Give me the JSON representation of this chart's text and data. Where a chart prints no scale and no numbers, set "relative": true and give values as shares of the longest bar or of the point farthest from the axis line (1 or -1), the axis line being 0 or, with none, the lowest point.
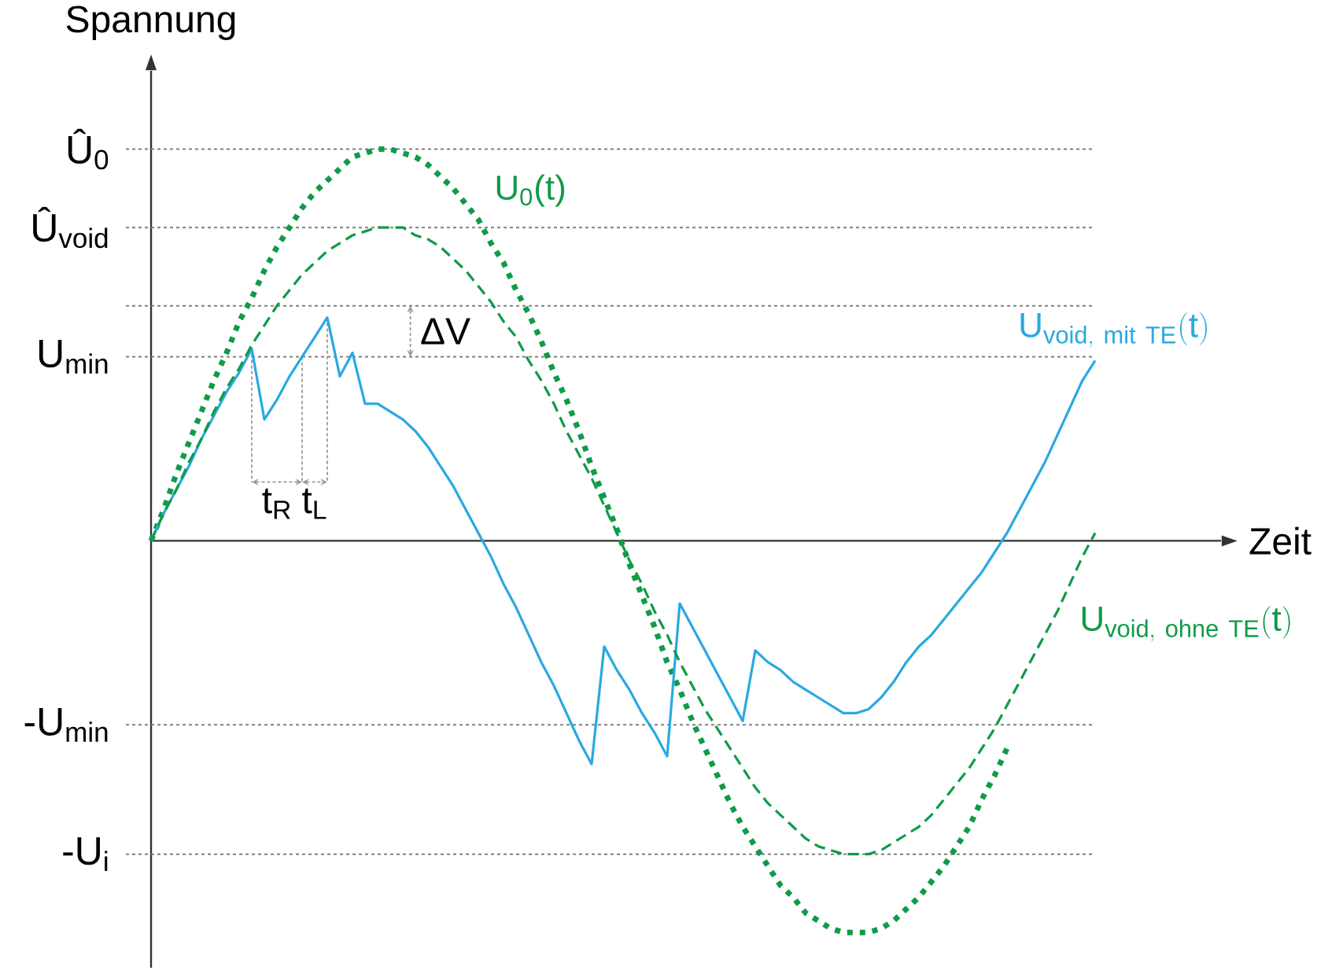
{
  "chart_data": {
    "type": "line",
    "relative": true,
    "xlabel": "Zeit",
    "ylabel": "Spannung",
    "categories": [
      null,
      null,
      null,
      null,
      null,
      null,
      null,
      null,
      null,
      null,
      null,
      null,
      null,
      null,
      null,
      null,
      null,
      null,
      null,
      null,
      null,
      null,
      null,
      null,
      null,
      null,
      null,
      null,
      null,
      null,
      null,
      null,
      null,
      null,
      null,
      null,
      null,
      null,
      null,
      null,
      null,
      null,
      null,
      null,
      null,
      null,
      null,
      null,
      null,
      null,
      null,
      null,
      null,
      null,
      null,
      null,
      null,
      null,
      null,
      null,
      null,
      null,
      null,
      null,
      null,
      null,
      null,
      null,
      null,
      null,
      null,
      null,
      null,
      null,
      null,
      null
    ],
    "series": [
      {
        "name": "U$_{0}$(t)",
        "color": "#0f9b48",
        "line_style": "dotted",
        "values": [
          0,
          0.08,
          0.17,
          0.25,
          0.33,
          0.41,
          0.48,
          0.56,
          0.62,
          0.69,
          0.75,
          0.8,
          0.85,
          0.89,
          0.92,
          0.95,
          0.98,
          0.99,
          1,
          1,
          0.99,
          0.98,
          0.96,
          0.93,
          0.9,
          0.86,
          0.82,
          0.76,
          0.71,
          0.64,
          0.58,
          0.51,
          0.43,
          0.36,
          0.28,
          0.19,
          0.11,
          0.03,
          -0.06,
          -0.14,
          -0.22,
          -0.31,
          -0.38,
          -0.46,
          -0.53,
          -0.6,
          -0.67,
          -0.73,
          -0.78,
          -0.83,
          -0.88,
          -0.91,
          -0.95,
          -0.97,
          -0.99,
          -1,
          -1,
          -1,
          -0.99,
          -0.97,
          -0.94,
          -0.91,
          -0.87,
          -0.83,
          -0.78,
          -0.73,
          -0.66,
          -0.6,
          -0.53,
          null,
          null,
          null,
          null,
          null,
          null,
          null
        ]
      },
      {
        "name": "\\mathrm{U}_{\\mathrm{void,\\ mit\\ TE}}(\\mathrm{t})",
        "color": "#29a9e1",
        "line_style": "solid",
        "values": [
          0,
          0.07,
          0.13,
          0.19,
          0.26,
          0.32,
          0.38,
          0.43,
          0.49,
          0.31,
          0.36,
          0.42,
          0.47,
          0.52,
          0.57,
          0.42,
          0.48,
          0.35,
          0.35,
          0.33,
          0.31,
          0.28,
          0.24,
          0.19,
          0.14,
          0.08,
          0.02,
          -0.04,
          -0.11,
          -0.17,
          -0.24,
          -0.31,
          -0.37,
          -0.44,
          -0.51,
          -0.57,
          -0.27,
          -0.33,
          -0.38,
          -0.44,
          -0.49,
          -0.55,
          -0.16,
          -0.22,
          -0.28,
          -0.34,
          -0.4,
          -0.46,
          -0.28,
          -0.31,
          -0.33,
          -0.36,
          -0.38,
          -0.4,
          -0.42,
          -0.44,
          -0.44,
          -0.43,
          -0.4,
          -0.36,
          -0.31,
          -0.27,
          -0.24,
          -0.2,
          -0.16,
          -0.12,
          -0.08,
          -0.03,
          0.02,
          0.08,
          0.14,
          0.2,
          0.27,
          0.34,
          0.41,
          0.46
        ]
      },
      {
        "name": "\\mathrm{U}_{\\mathrm{void,\\ ohne\\ TE}}(\\mathrm{t})",
        "color": "#0f9b48",
        "line_style": "dashed",
        "values": [
          0,
          0.07,
          0.13,
          0.2,
          0.26,
          0.33,
          0.39,
          0.44,
          0.5,
          0.55,
          0.6,
          0.64,
          0.68,
          0.71,
          0.74,
          0.76,
          0.78,
          0.79,
          0.8,
          0.8,
          0.8,
          0.78,
          0.77,
          0.75,
          0.72,
          0.69,
          0.65,
          0.61,
          0.56,
          0.52,
          0.46,
          0.41,
          0.35,
          0.28,
          0.22,
          0.16,
          0.09,
          0.02,
          -0.05,
          -0.11,
          -0.18,
          -0.24,
          -0.31,
          -0.37,
          -0.43,
          -0.48,
          -0.53,
          -0.58,
          -0.63,
          -0.67,
          -0.7,
          -0.73,
          -0.76,
          -0.78,
          -0.79,
          -0.8,
          -0.8,
          -0.8,
          -0.79,
          -0.77,
          -0.75,
          -0.73,
          -0.7,
          -0.66,
          -0.62,
          -0.58,
          -0.53,
          -0.48,
          -0.42,
          -0.36,
          -0.3,
          -0.24,
          -0.18,
          -0.11,
          -0.04,
          0.02
        ]
      }
    ],
    "ref_lines": [
      {
        "axis": "y",
        "value": 1,
        "label": "Û$_{0}$",
        "color": "#808080",
        "line_style": "dotted"
      },
      {
        "axis": "y",
        "value": 0.8,
        "label": "Û$_{void}$",
        "color": "#808080",
        "line_style": "dotted"
      },
      {
        "axis": "y",
        "value": 0.6,
        "color": "#808080",
        "line_style": "dotted"
      },
      {
        "axis": "y",
        "value": 0.47,
        "label": "U$_{min}$",
        "color": "#808080",
        "line_style": "dotted"
      },
      {
        "axis": "y",
        "value": -0.47,
        "label": "-U$_{min}$",
        "color": "#808080",
        "line_style": "dotted"
      },
      {
        "axis": "y",
        "value": -0.8,
        "label": "-U$_{i}$",
        "color": "#808080",
        "line_style": "dotted"
      }
    ],
    "annotations": [
      "ΔV",
      "t$_{R}$",
      "t$_{L}$"
    ]
  }
}
